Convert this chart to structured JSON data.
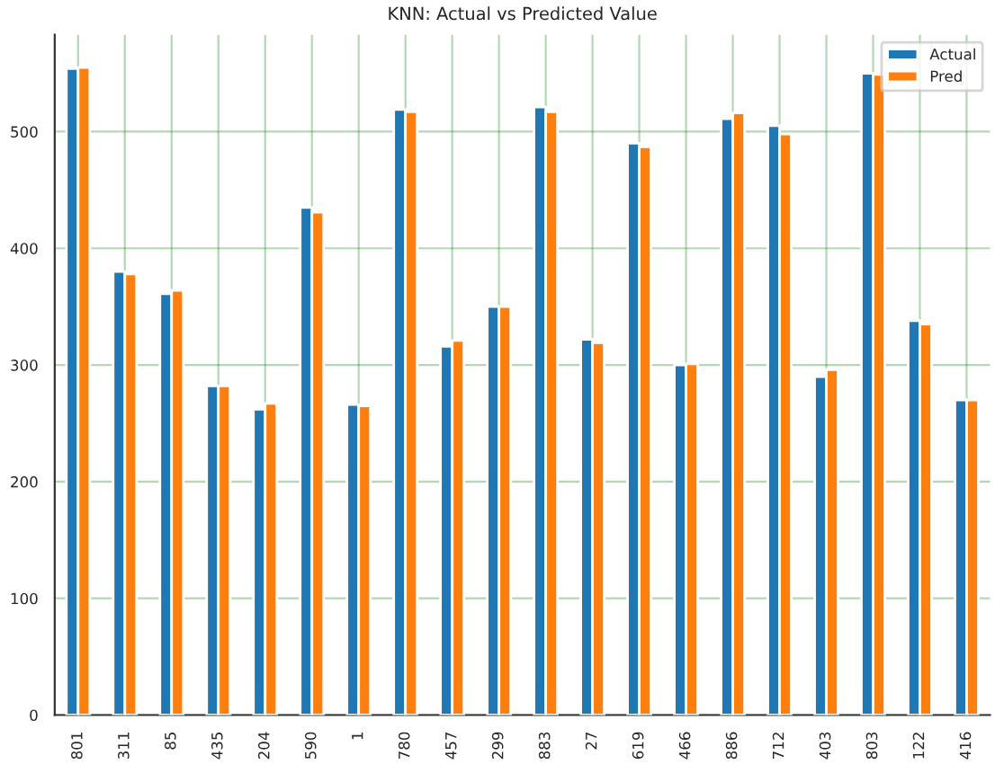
{
  "chart_data": {
    "type": "bar",
    "title": "KNN: Actual vs Predicted Value",
    "categories": [
      "801",
      "311",
      "85",
      "435",
      "204",
      "590",
      "1",
      "780",
      "457",
      "299",
      "883",
      "27",
      "619",
      "466",
      "886",
      "712",
      "403",
      "803",
      "122",
      "416"
    ],
    "series": [
      {
        "name": "Actual",
        "color": "#1f77b4",
        "values": [
          554,
          380,
          361,
          282,
          262,
          435,
          266,
          519,
          316,
          350,
          521,
          322,
          490,
          300,
          511,
          505,
          290,
          550,
          338,
          270
        ]
      },
      {
        "name": "Pred",
        "color": "#ff7f0e",
        "values": [
          555,
          378,
          364,
          282,
          267,
          431,
          265,
          517,
          321,
          350,
          517,
          319,
          487,
          301,
          516,
          498,
          296,
          549,
          335,
          270
        ]
      }
    ],
    "ylim": [
      0,
      583
    ],
    "yticks": [
      0,
      100,
      200,
      300,
      400,
      500
    ],
    "grid": true,
    "legend": "top right"
  }
}
